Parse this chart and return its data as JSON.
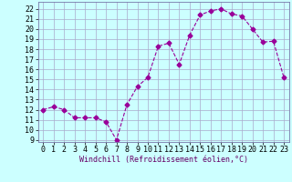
{
  "x": [
    0,
    1,
    2,
    3,
    4,
    5,
    6,
    7,
    8,
    9,
    10,
    11,
    12,
    13,
    14,
    15,
    16,
    17,
    18,
    19,
    20,
    21,
    22,
    23
  ],
  "y": [
    12.0,
    12.3,
    12.0,
    11.2,
    11.2,
    11.2,
    10.8,
    9.0,
    12.5,
    14.3,
    15.2,
    18.3,
    18.6,
    16.5,
    19.4,
    21.4,
    21.8,
    22.0,
    21.5,
    21.3,
    20.0,
    18.7,
    18.8,
    15.2
  ],
  "line_color": "#990099",
  "marker": "D",
  "marker_size": 2.5,
  "xlabel": "Windchill (Refroidissement éolien,°C)",
  "ylim": [
    8.8,
    22.7
  ],
  "yticks": [
    9,
    10,
    11,
    12,
    13,
    14,
    15,
    16,
    17,
    18,
    19,
    20,
    21,
    22
  ],
  "xlim": [
    -0.5,
    23.5
  ],
  "xticks": [
    0,
    1,
    2,
    3,
    4,
    5,
    6,
    7,
    8,
    9,
    10,
    11,
    12,
    13,
    14,
    15,
    16,
    17,
    18,
    19,
    20,
    21,
    22,
    23
  ],
  "background_color": "#ccffff",
  "grid_color": "#aaaacc",
  "spine_color": "#7777aa",
  "label_fontsize": 6,
  "tick_fontsize": 6
}
